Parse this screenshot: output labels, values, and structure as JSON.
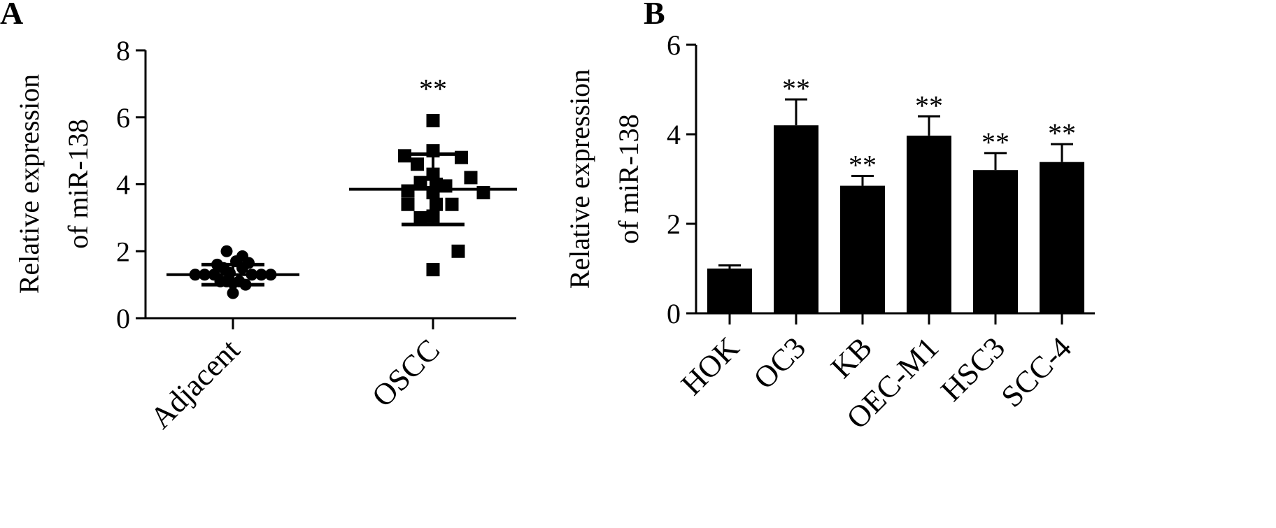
{
  "chart_data": [
    {
      "panel": "A",
      "type": "scatter",
      "ylabel_lines": [
        "Relative expression",
        "of miR-138"
      ],
      "ylim": [
        0,
        8
      ],
      "yticks": [
        0,
        2,
        4,
        6,
        8
      ],
      "categories": [
        "Adjacent",
        "OSCC"
      ],
      "groups": [
        {
          "name": "Adjacent",
          "marker": "circle",
          "points": [
            {
              "offset": -0.6,
              "y": 1.3
            },
            {
              "offset": -0.45,
              "y": 1.3
            },
            {
              "offset": -0.3,
              "y": 1.3
            },
            {
              "offset": -0.2,
              "y": 1.1
            },
            {
              "offset": -0.1,
              "y": 1.1
            },
            {
              "offset": 0.0,
              "y": 1.05
            },
            {
              "offset": 0.1,
              "y": 1.1
            },
            {
              "offset": 0.2,
              "y": 1.0
            },
            {
              "offset": 0.3,
              "y": 1.3
            },
            {
              "offset": 0.45,
              "y": 1.3
            },
            {
              "offset": 0.6,
              "y": 1.3
            },
            {
              "offset": -0.15,
              "y": 1.5
            },
            {
              "offset": 0.15,
              "y": 1.5
            },
            {
              "offset": -0.25,
              "y": 1.6
            },
            {
              "offset": 0.25,
              "y": 1.65
            },
            {
              "offset": -0.1,
              "y": 2.0
            },
            {
              "offset": 0.15,
              "y": 1.85
            },
            {
              "offset": 0.0,
              "y": 0.75
            },
            {
              "offset": 0.05,
              "y": 1.7
            },
            {
              "offset": -0.05,
              "y": 1.35
            }
          ],
          "mean": 1.3,
          "sd_low": 1.0,
          "sd_high": 1.6
        },
        {
          "name": "OSCC",
          "marker": "square",
          "points": [
            {
              "offset": 0.0,
              "y": 5.9
            },
            {
              "offset": -0.45,
              "y": 4.85
            },
            {
              "offset": 0.0,
              "y": 5.0
            },
            {
              "offset": 0.45,
              "y": 4.8
            },
            {
              "offset": -0.25,
              "y": 4.6
            },
            {
              "offset": 0.0,
              "y": 4.3
            },
            {
              "offset": 0.6,
              "y": 4.2
            },
            {
              "offset": -0.2,
              "y": 4.05
            },
            {
              "offset": 0.05,
              "y": 4.0
            },
            {
              "offset": 0.2,
              "y": 3.95
            },
            {
              "offset": -0.4,
              "y": 3.8
            },
            {
              "offset": 0.0,
              "y": 3.75
            },
            {
              "offset": 0.8,
              "y": 3.75
            },
            {
              "offset": -0.4,
              "y": 3.4
            },
            {
              "offset": 0.05,
              "y": 3.4
            },
            {
              "offset": 0.3,
              "y": 3.4
            },
            {
              "offset": -0.2,
              "y": 3.0
            },
            {
              "offset": 0.0,
              "y": 3.05
            },
            {
              "offset": 0.4,
              "y": 2.0
            },
            {
              "offset": 0.0,
              "y": 1.45
            }
          ],
          "mean": 3.85,
          "sd_low": 2.8,
          "sd_high": 4.9
        }
      ],
      "annotations": [
        {
          "category": "OSCC",
          "text": "**",
          "y": 6.9
        }
      ]
    },
    {
      "panel": "B",
      "type": "bar",
      "ylabel_lines": [
        "Relative expression",
        "of miR-138"
      ],
      "ylim": [
        0,
        6
      ],
      "yticks": [
        0,
        2,
        4,
        6
      ],
      "categories": [
        "HOK",
        "OC3",
        "KB",
        "OEC-M1",
        "HSC3",
        "SCC-4"
      ],
      "values": [
        1.0,
        4.2,
        2.85,
        3.97,
        3.2,
        3.38
      ],
      "errors": [
        0.07,
        0.58,
        0.22,
        0.43,
        0.38,
        0.4
      ],
      "significance": [
        "",
        "**",
        "**",
        "**",
        "**",
        "**"
      ]
    }
  ]
}
